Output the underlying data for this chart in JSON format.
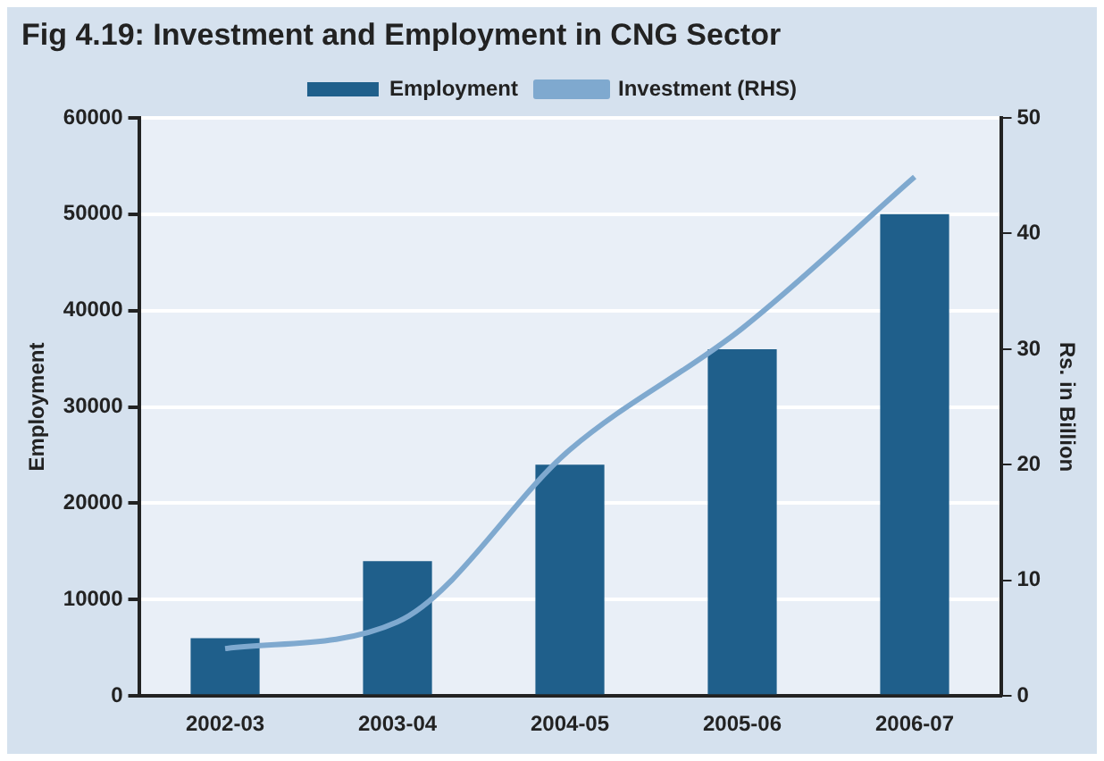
{
  "chart_data": {
    "type": "bar",
    "title": "Fig 4.19: Investment and Employment in CNG Sector",
    "categories": [
      "2002-03",
      "2003-04",
      "2004-05",
      "2005-06",
      "2006-07"
    ],
    "series": [
      {
        "name": "Employment",
        "color": "#1f5f8b",
        "values": [
          6000,
          14000,
          24000,
          36000,
          50000
        ]
      },
      {
        "name": "Investment (RHS)",
        "type": "line",
        "axis": "y2",
        "color": "#7fa9cf",
        "values": [
          4.1,
          6.4,
          21.3,
          31.8,
          44.9
        ]
      }
    ],
    "ylabel": "Employment",
    "y2label": "Rs. in Billion",
    "ylim": [
      0,
      60000
    ],
    "yticks": [
      0,
      10000,
      20000,
      30000,
      40000,
      50000,
      60000
    ],
    "y2lim": [
      0,
      50
    ],
    "y2ticks": [
      0,
      10,
      20,
      30,
      40,
      50
    ],
    "grid": "y",
    "legend": "top",
    "marker": "none"
  }
}
